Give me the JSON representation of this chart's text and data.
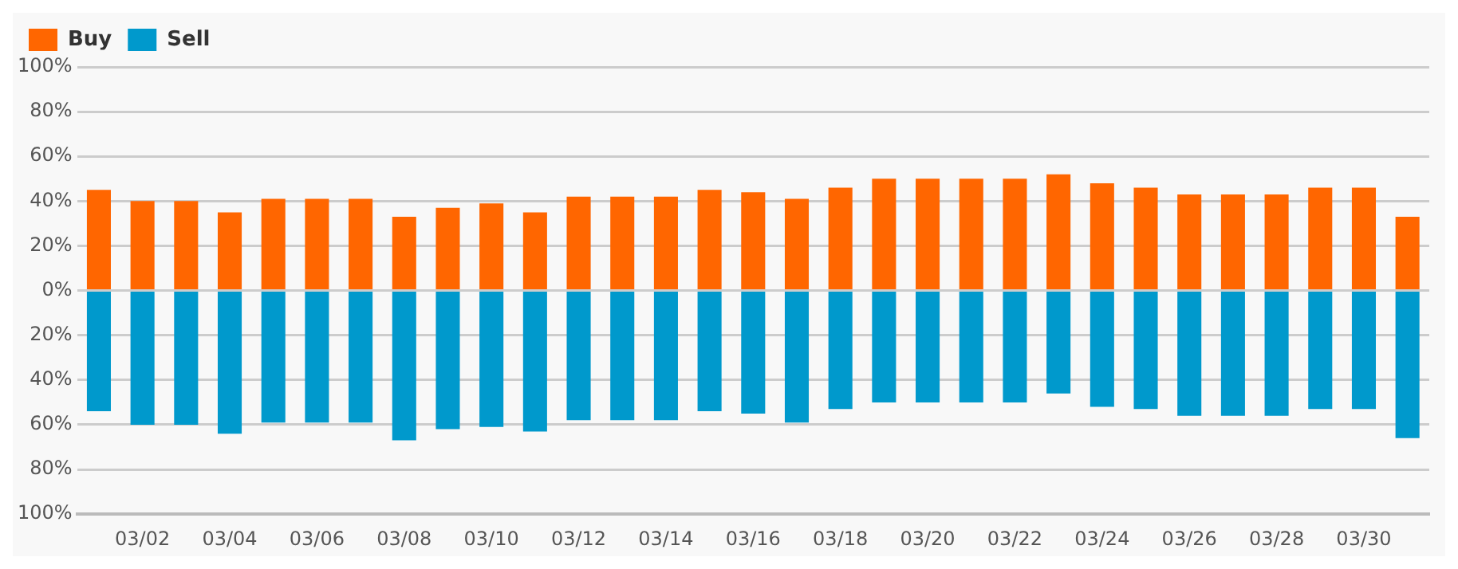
{
  "chart_data": {
    "type": "bar",
    "stacked": true,
    "categories": [
      null,
      "03/02",
      null,
      "03/04",
      null,
      "03/06",
      null,
      "03/08",
      null,
      "03/10",
      null,
      "03/12",
      null,
      "03/14",
      null,
      "03/16",
      null,
      "03/18",
      null,
      "03/20",
      null,
      "03/22",
      null,
      "03/24",
      null,
      "03/26",
      null,
      "03/28",
      null,
      "03/30",
      null
    ],
    "series": [
      {
        "name": "Buy",
        "color": "#ff6600",
        "values": [
          45,
          40,
          40,
          35,
          41,
          41,
          41,
          33,
          37,
          39,
          35,
          42,
          42,
          42,
          45,
          44,
          41,
          46,
          50,
          50,
          50,
          50,
          52,
          48,
          46,
          43,
          43,
          43,
          46,
          46,
          33
        ]
      },
      {
        "name": "Sell",
        "color": "#0099cc",
        "values": [
          -54,
          -60,
          -60,
          -64,
          -59,
          -59,
          -59,
          -67,
          -62,
          -61,
          -63,
          -58,
          -58,
          -58,
          -54,
          -55,
          -59,
          -53,
          -50,
          -50,
          -50,
          -50,
          -46,
          -52,
          -53,
          -56,
          -56,
          -56,
          -53,
          -53,
          -66
        ]
      }
    ],
    "ylim": [
      -100,
      100
    ],
    "yticks": [
      {
        "value": -100,
        "label": "100%"
      },
      {
        "value": -80,
        "label": "80%"
      },
      {
        "value": -60,
        "label": "60%"
      },
      {
        "value": -40,
        "label": "40%"
      },
      {
        "value": -20,
        "label": "20%"
      },
      {
        "value": 0,
        "label": "0%"
      },
      {
        "value": 20,
        "label": "20%"
      },
      {
        "value": 40,
        "label": "40%"
      },
      {
        "value": 60,
        "label": "60%"
      },
      {
        "value": 80,
        "label": "80%"
      },
      {
        "value": 100,
        "label": "100%"
      }
    ],
    "grid": "y",
    "legend": "top left"
  }
}
